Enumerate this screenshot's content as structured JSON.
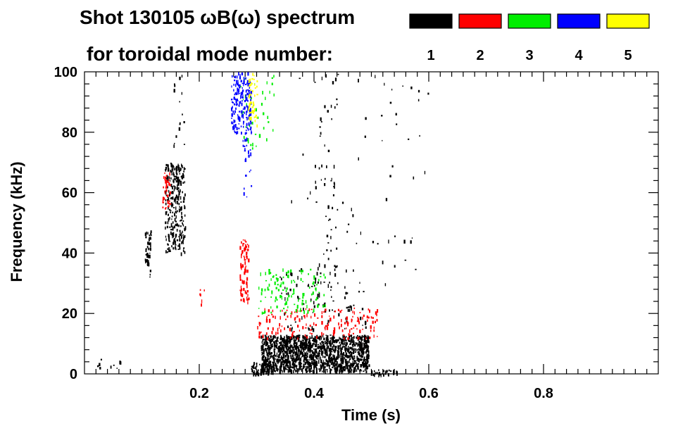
{
  "chart_data": {
    "type": "scatter",
    "title_line1": "Shot 130105 ωB(ω) spectrum",
    "title_line2": "for toroidal mode number:",
    "xlabel": "Time (s)",
    "ylabel": "Frequency (kHz)",
    "xlim": [
      0.0,
      1.0
    ],
    "ylim": [
      0,
      100
    ],
    "x_ticks": [
      0.2,
      0.4,
      0.6,
      0.8
    ],
    "x_tick_labels": [
      "0.2",
      "0.4",
      "0.6",
      "0.8"
    ],
    "y_ticks": [
      0,
      20,
      40,
      60,
      80,
      100
    ],
    "y_tick_labels": [
      "0",
      "20",
      "40",
      "60",
      "80",
      "100"
    ],
    "x_minor_step": 0.02,
    "y_minor_step": 4,
    "legend": [
      {
        "label": "1",
        "color": "#000000"
      },
      {
        "label": "2",
        "color": "#ff0000"
      },
      {
        "label": "3",
        "color": "#00ee00"
      },
      {
        "label": "4",
        "color": "#0000ff"
      },
      {
        "label": "5",
        "color": "#ffff00"
      }
    ],
    "series": [
      {
        "mode": "1",
        "color": "#000000",
        "regions": [
          {
            "x0": 0.307,
            "x1": 0.495,
            "y0": 1,
            "y1": 13,
            "density": 0.9
          },
          {
            "x0": 0.29,
            "x1": 0.33,
            "y0": 0,
            "y1": 4,
            "density": 0.6
          },
          {
            "x0": 0.495,
            "x1": 0.545,
            "y0": 0,
            "y1": 1.5,
            "density": 0.7
          },
          {
            "x0": 0.14,
            "x1": 0.175,
            "y0": 40,
            "y1": 70,
            "density": 0.35
          },
          {
            "x0": 0.105,
            "x1": 0.115,
            "y0": 32,
            "y1": 48,
            "density": 0.4
          },
          {
            "x0": 0.02,
            "x1": 0.07,
            "y0": 2,
            "y1": 5,
            "density": 0.1
          },
          {
            "x0": 0.34,
            "x1": 0.49,
            "y0": 15,
            "y1": 35,
            "density": 0.04
          },
          {
            "x0": 0.4,
            "x1": 0.44,
            "y0": 20,
            "y1": 100,
            "density": 0.03
          },
          {
            "x0": 0.155,
            "x1": 0.175,
            "y0": 72,
            "y1": 100,
            "density": 0.04
          },
          {
            "x0": 0.36,
            "x1": 0.6,
            "y0": 30,
            "y1": 100,
            "density": 0.005
          }
        ]
      },
      {
        "mode": "2",
        "color": "#ff0000",
        "regions": [
          {
            "x0": 0.3,
            "x1": 0.51,
            "y0": 12,
            "y1": 22,
            "density": 0.12
          },
          {
            "x0": 0.27,
            "x1": 0.285,
            "y0": 24,
            "y1": 45,
            "density": 0.35
          },
          {
            "x0": 0.135,
            "x1": 0.15,
            "y0": 55,
            "y1": 67,
            "density": 0.3
          },
          {
            "x0": 0.2,
            "x1": 0.215,
            "y0": 23,
            "y1": 29,
            "density": 0.1
          }
        ]
      },
      {
        "mode": "3",
        "color": "#00ee00",
        "regions": [
          {
            "x0": 0.3,
            "x1": 0.42,
            "y0": 20,
            "y1": 35,
            "density": 0.1
          },
          {
            "x0": 0.27,
            "x1": 0.33,
            "y0": 75,
            "y1": 100,
            "density": 0.04
          }
        ]
      },
      {
        "mode": "4",
        "color": "#0000ff",
        "regions": [
          {
            "x0": 0.255,
            "x1": 0.29,
            "y0": 80,
            "y1": 100,
            "density": 0.35
          },
          {
            "x0": 0.275,
            "x1": 0.29,
            "y0": 58,
            "y1": 80,
            "density": 0.1
          }
        ]
      },
      {
        "mode": "5",
        "color": "#ffff00",
        "regions": [
          {
            "x0": 0.285,
            "x1": 0.3,
            "y0": 82,
            "y1": 100,
            "density": 0.25
          }
        ]
      }
    ]
  }
}
